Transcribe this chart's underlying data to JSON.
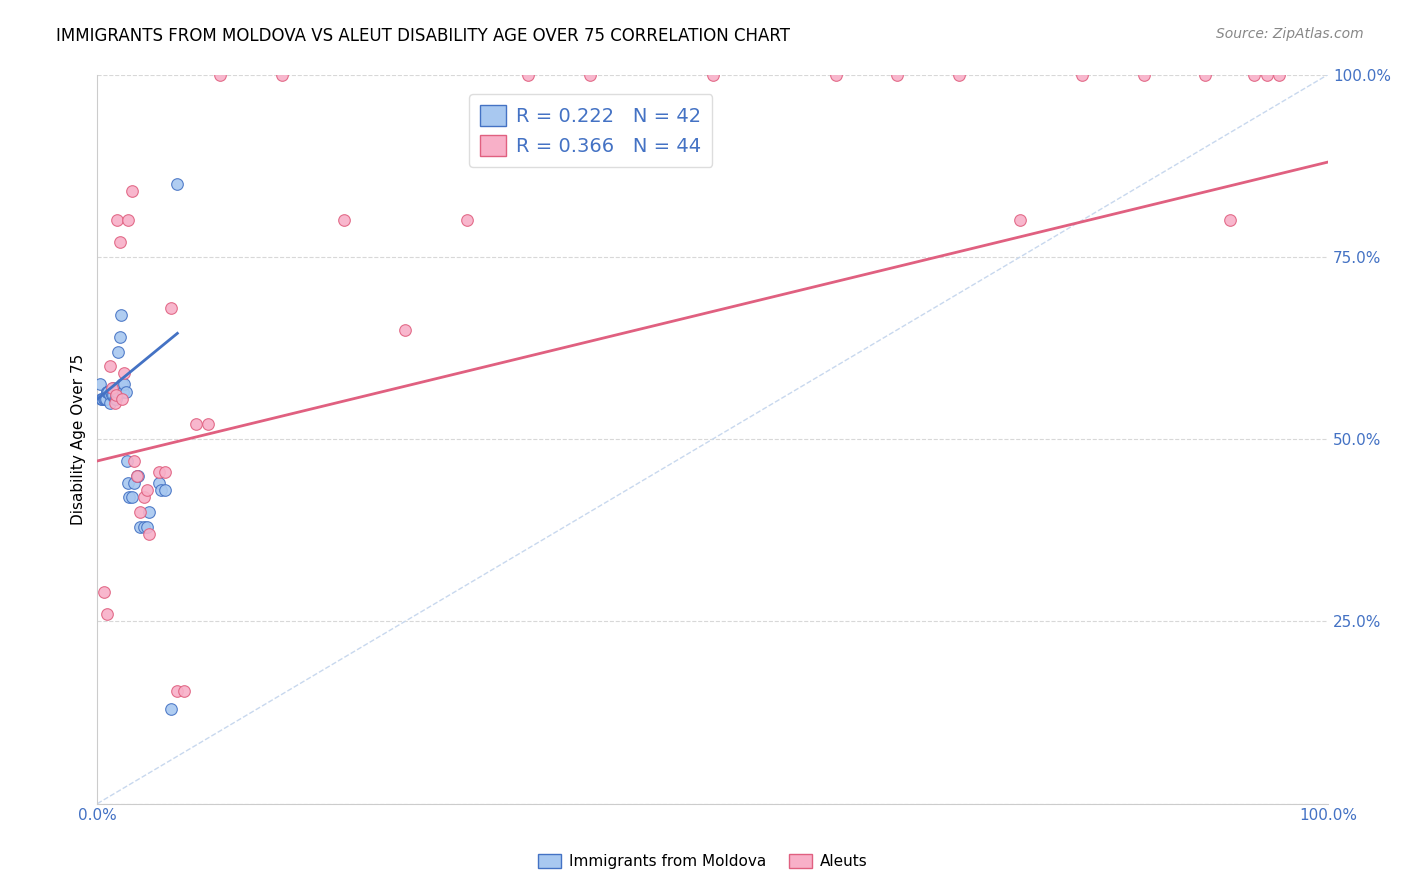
{
  "title": "IMMIGRANTS FROM MOLDOVA VS ALEUT DISABILITY AGE OVER 75 CORRELATION CHART",
  "source": "Source: ZipAtlas.com",
  "ylabel": "Disability Age Over 75",
  "legend_blue_r": "R = 0.222",
  "legend_blue_n": "N = 42",
  "legend_pink_r": "R = 0.366",
  "legend_pink_n": "N = 44",
  "legend_label_blue": "Immigrants from Moldova",
  "legend_label_pink": "Aleuts",
  "xlim": [
    0,
    1
  ],
  "ylim": [
    0,
    1
  ],
  "yticks": [
    0.0,
    0.25,
    0.5,
    0.75,
    1.0
  ],
  "ytick_labels": [
    "",
    "25.0%",
    "50.0%",
    "75.0%",
    "100.0%"
  ],
  "xticks": [
    0.0,
    0.1,
    0.2,
    0.3,
    0.4,
    0.5,
    0.6,
    0.7,
    0.8,
    0.9,
    1.0
  ],
  "blue_scatter_x": [
    0.002,
    0.003,
    0.004,
    0.005,
    0.006,
    0.007,
    0.008,
    0.008,
    0.009,
    0.01,
    0.01,
    0.011,
    0.012,
    0.013,
    0.013,
    0.014,
    0.015,
    0.015,
    0.016,
    0.017,
    0.018,
    0.019,
    0.02,
    0.021,
    0.022,
    0.023,
    0.024,
    0.025,
    0.026,
    0.028,
    0.03,
    0.032,
    0.033,
    0.035,
    0.038,
    0.04,
    0.042,
    0.05,
    0.052,
    0.055,
    0.06,
    0.065
  ],
  "blue_scatter_y": [
    0.575,
    0.555,
    0.555,
    0.555,
    0.555,
    0.555,
    0.565,
    0.565,
    0.565,
    0.56,
    0.55,
    0.565,
    0.56,
    0.57,
    0.56,
    0.555,
    0.555,
    0.565,
    0.565,
    0.62,
    0.64,
    0.67,
    0.575,
    0.565,
    0.575,
    0.565,
    0.47,
    0.44,
    0.42,
    0.42,
    0.44,
    0.45,
    0.45,
    0.38,
    0.38,
    0.38,
    0.4,
    0.44,
    0.43,
    0.43,
    0.13,
    0.85
  ],
  "pink_scatter_x": [
    0.005,
    0.008,
    0.01,
    0.012,
    0.014,
    0.015,
    0.016,
    0.018,
    0.02,
    0.022,
    0.025,
    0.028,
    0.03,
    0.032,
    0.035,
    0.038,
    0.04,
    0.042,
    0.05,
    0.055,
    0.06,
    0.065,
    0.07,
    0.08,
    0.09,
    0.1,
    0.15,
    0.2,
    0.25,
    0.3,
    0.35,
    0.4,
    0.5,
    0.6,
    0.65,
    0.7,
    0.75,
    0.8,
    0.85,
    0.9,
    0.92,
    0.94,
    0.95,
    0.96
  ],
  "pink_scatter_y": [
    0.29,
    0.26,
    0.6,
    0.57,
    0.55,
    0.56,
    0.8,
    0.77,
    0.555,
    0.59,
    0.8,
    0.84,
    0.47,
    0.45,
    0.4,
    0.42,
    0.43,
    0.37,
    0.455,
    0.455,
    0.68,
    0.155,
    0.155,
    0.52,
    0.52,
    1.0,
    1.0,
    0.8,
    0.65,
    0.8,
    1.0,
    1.0,
    1.0,
    1.0,
    1.0,
    1.0,
    0.8,
    1.0,
    1.0,
    1.0,
    0.8,
    1.0,
    1.0,
    1.0
  ],
  "blue_line_x": [
    0.0,
    0.065
  ],
  "blue_line_y": [
    0.555,
    0.645
  ],
  "pink_line_x": [
    0.0,
    1.0
  ],
  "pink_line_y": [
    0.47,
    0.88
  ],
  "diag_line_x": [
    0.0,
    1.0
  ],
  "diag_line_y": [
    0.0,
    1.0
  ],
  "scatter_color_blue": "#a8c8f0",
  "scatter_color_pink": "#f8b0c8",
  "line_color_blue": "#4472c4",
  "line_color_pink": "#e06080",
  "diag_color": "#c8d8ee",
  "title_fontsize": 12,
  "source_fontsize": 10,
  "marker_size": 70,
  "background_color": "#ffffff",
  "grid_color": "#d8d8d8"
}
